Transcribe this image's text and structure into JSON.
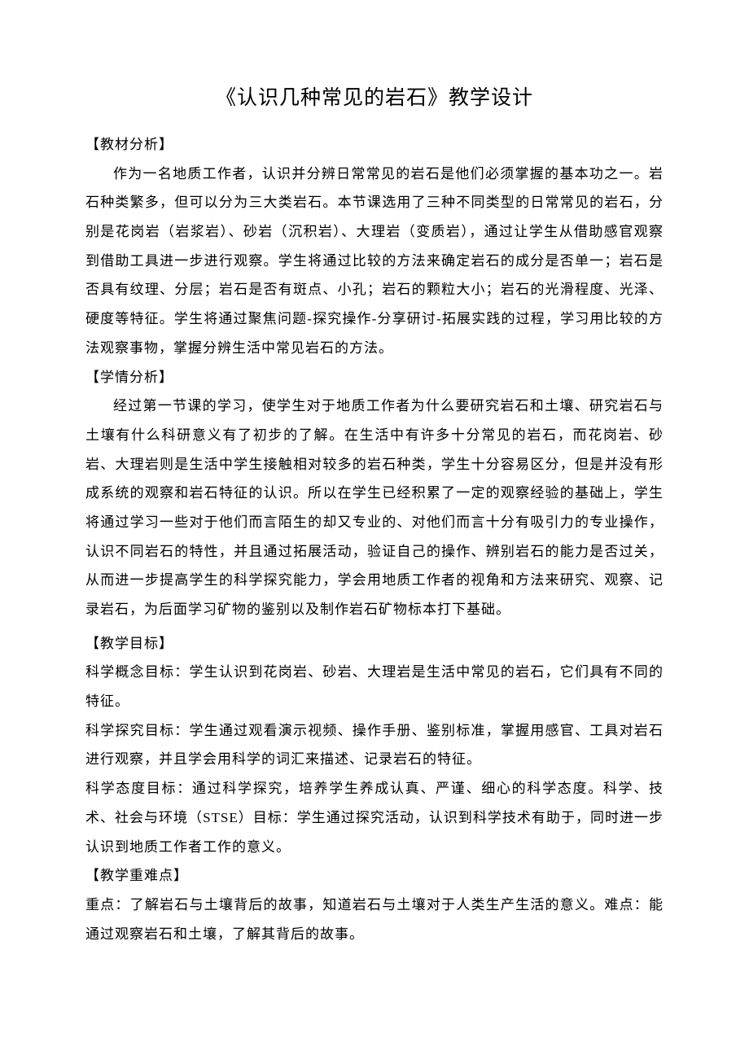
{
  "title": "《认识几种常见的岩石》教学设计",
  "sections": {
    "s1_heading": "【教材分析】",
    "s1_body": "作为一名地质工作者，认识并分辨日常常见的岩石是他们必须掌握的基本功之一。岩石种类繁多，但可以分为三大类岩石。本节课选用了三种不同类型的日常常见的岩石，分别是花岗岩（岩浆岩）、砂岩（沉积岩）、大理岩（变质岩），通过让学生从借助感官观察到借助工具进一步进行观察。学生将通过比较的方法来确定岩石的成分是否单一；岩石是否具有纹理、分层；岩石是否有斑点、小孔；岩石的颗粒大小；岩石的光滑程度、光泽、硬度等特征。学生将通过聚焦问题-探究操作-分享研讨-拓展实践的过程，学习用比较的方法观察事物，掌握分辨生活中常见岩石的方法。",
    "s2_heading": "【学情分析】",
    "s2_body": "经过第一节课的学习，使学生对于地质工作者为什么要研究岩石和土壤、研究岩石与土壤有什么科研意义有了初步的了解。在生活中有许多十分常见的岩石，而花岗岩、砂岩、大理岩则是生活中学生接触相对较多的岩石种类，学生十分容易区分，但是并没有形成系统的观察和岩石特征的认识。所以在学生已经积累了一定的观察经验的基础上，学生将通过学习一些对于他们而言陌生的却又专业的、对他们而言十分有吸引力的专业操作，认识不同岩石的特性，并且通过拓展活动，验证自己的操作、辨别岩石的能力是否过关，从而进一步提高学生的科学探究能力，学会用地质工作者的视角和方法来研究、观察、记录岩石，为后面学习矿物的鉴别以及制作岩石矿物标本打下基础。",
    "s3_heading": "【教学目标】",
    "s3_g1": "科学概念目标：学生认识到花岗岩、砂岩、大理岩是生活中常见的岩石，它们具有不同的特征。",
    "s3_g2": "科学探究目标：学生通过观看演示视频、操作手册、鉴别标准，掌握用感官、工具对岩石进行观察，并且学会用科学的词汇来描述、记录岩石的特征。",
    "s3_g3": "科学态度目标：通过科学探究，培养学生养成认真、严谨、细心的科学态度。科学、技术、社会与环境（STSE）目标：学生通过探究活动，认识到科学技术有助于，同时进一步认识到地质工作者工作的意义。",
    "s4_heading": "【教学重难点】",
    "s4_b1": "重点：了解岩石与土壤背后的故事，知道岩石与土壤对于人类生产生活的意义。难点：能通过观察岩石和土壤，了解其背后的故事。"
  }
}
